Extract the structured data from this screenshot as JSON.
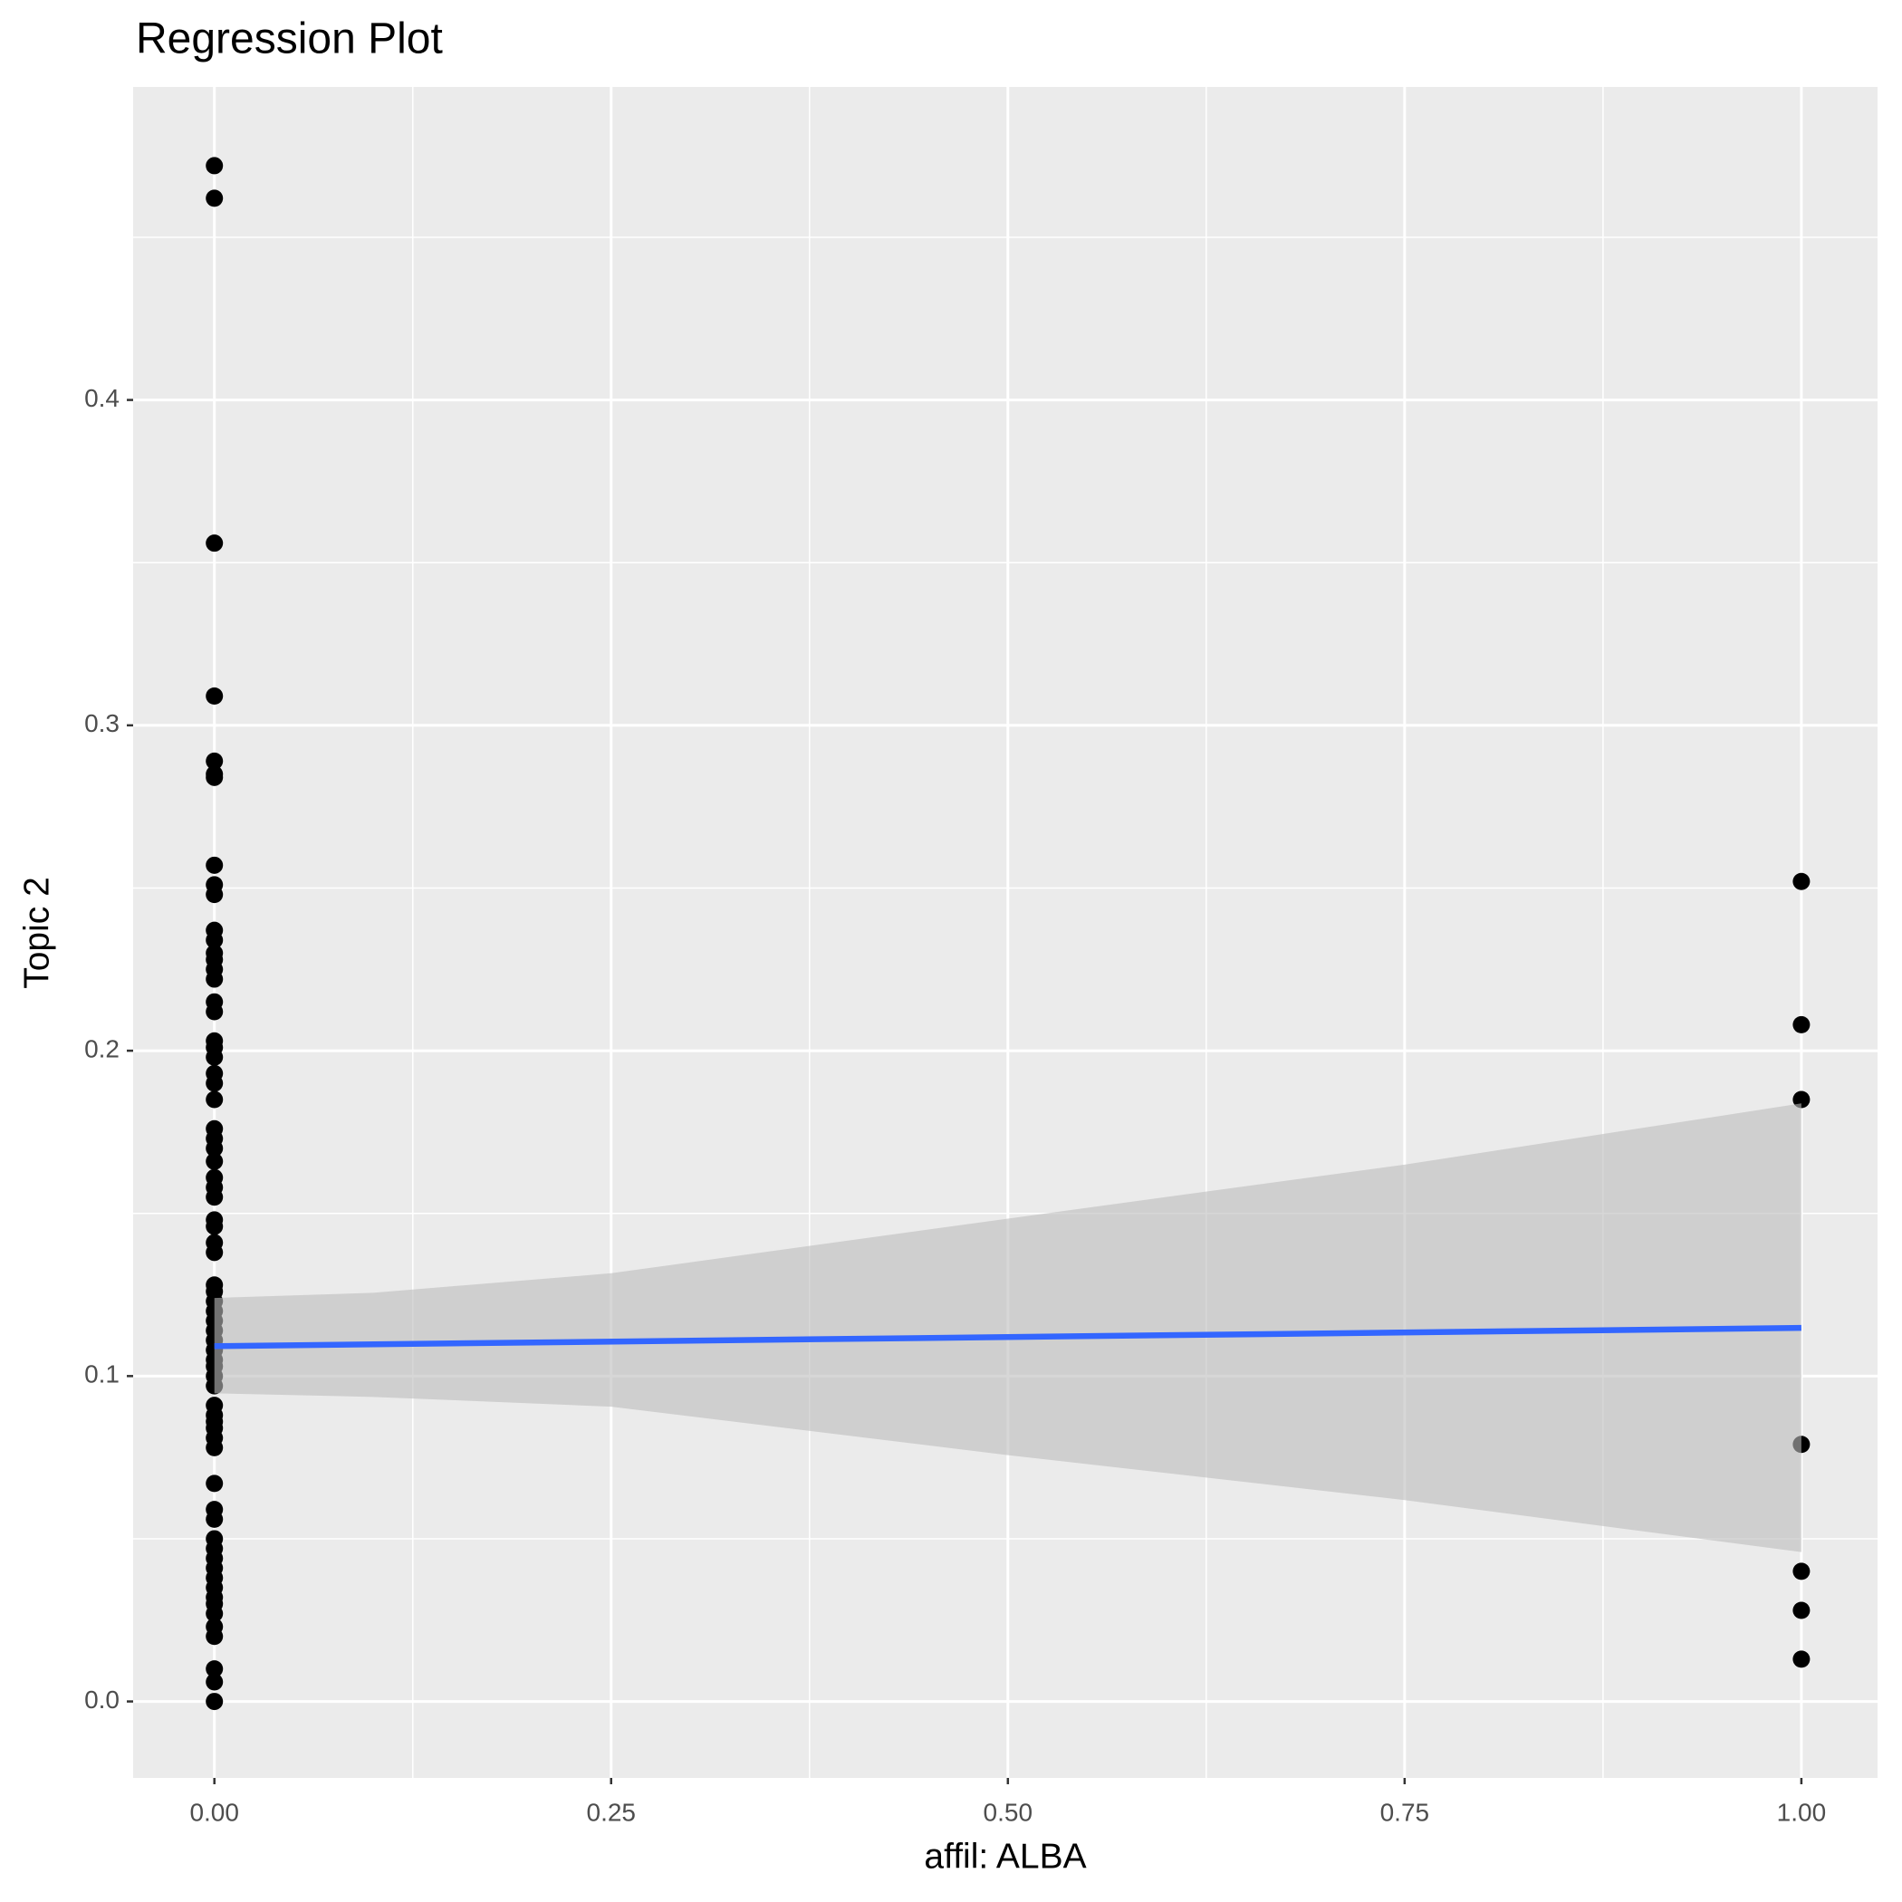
{
  "chart_data": {
    "type": "scatter",
    "title": "Regression Plot",
    "xlabel": "affil: ALBA",
    "ylabel": "Topic 2",
    "xlim": [
      -0.0512,
      1.048
    ],
    "ylim": [
      -0.0235,
      0.4962
    ],
    "xticks": [
      {
        "value": 0,
        "label": "0.00"
      },
      {
        "value": 0.25,
        "label": "0.25"
      },
      {
        "value": 0.5,
        "label": "0.50"
      },
      {
        "value": 0.75,
        "label": "0.75"
      },
      {
        "value": 1,
        "label": "1.00"
      }
    ],
    "yticks": [
      {
        "value": 0,
        "label": "0.0"
      },
      0.1,
      0.2,
      0.3,
      0.4
    ],
    "x_minor_grid": [
      0.125,
      0.375,
      0.625,
      0.875
    ],
    "y_minor_grid": [
      0.05,
      0.15,
      0.25,
      0.35,
      0.45
    ],
    "grid": true,
    "points": {
      "color": "#000000",
      "x": [
        0,
        0,
        0,
        0,
        0,
        0,
        0,
        0,
        0,
        0,
        0,
        0,
        0,
        0,
        0,
        0,
        0,
        0,
        0,
        0,
        0,
        0,
        0,
        0,
        0,
        0,
        0,
        0,
        0,
        0,
        0,
        0,
        0,
        0,
        0,
        0,
        0,
        0,
        0,
        0,
        0,
        0,
        0,
        0,
        0,
        0,
        0,
        0,
        0,
        0,
        0,
        0,
        0,
        0,
        0,
        0,
        0,
        0,
        0,
        0,
        0,
        0,
        0,
        0,
        0,
        0,
        0,
        0,
        0,
        0,
        1,
        1,
        1,
        1,
        1,
        1,
        1
      ],
      "values": [
        0.472,
        0.462,
        0.356,
        0.309,
        0.289,
        0.285,
        0.284,
        0.257,
        0.251,
        0.248,
        0.237,
        0.234,
        0.23,
        0.228,
        0.225,
        0.222,
        0.215,
        0.212,
        0.203,
        0.201,
        0.198,
        0.193,
        0.19,
        0.185,
        0.176,
        0.173,
        0.17,
        0.166,
        0.161,
        0.158,
        0.155,
        0.148,
        0.146,
        0.141,
        0.138,
        0.128,
        0.126,
        0.123,
        0.12,
        0.117,
        0.114,
        0.111,
        0.108,
        0.105,
        0.103,
        0.1,
        0.097,
        0.091,
        0.088,
        0.086,
        0.084,
        0.081,
        0.078,
        0.067,
        0.059,
        0.056,
        0.05,
        0.047,
        0.044,
        0.041,
        0.038,
        0.035,
        0.032,
        0.03,
        0.027,
        0.023,
        0.02,
        0.01,
        0.006,
        0.0,
        0.252,
        0.208,
        0.185,
        0.079,
        0.04,
        0.028,
        0.013
      ]
    },
    "fit": {
      "color": "#3366ff",
      "x": [
        0,
        1
      ],
      "values": [
        0.1092,
        0.1148
      ]
    },
    "band": {
      "color": "#bdbdbd",
      "x": [
        0,
        0.1,
        0.25,
        0.5,
        0.75,
        1
      ],
      "upper": [
        0.124,
        0.1256,
        0.1316,
        0.1484,
        0.165,
        0.1838
      ],
      "lower": [
        0.0947,
        0.0936,
        0.0906,
        0.0757,
        0.0619,
        0.0459
      ]
    }
  }
}
